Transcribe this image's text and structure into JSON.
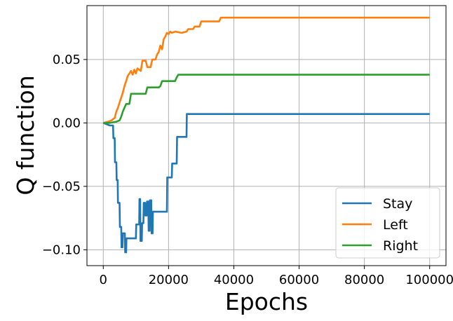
{
  "chart_data": {
    "type": "line",
    "title": "",
    "xlabel": "Epochs",
    "ylabel": "Q function",
    "xlim": [
      -5000,
      105000
    ],
    "ylim": [
      -0.1125,
      0.0925
    ],
    "xticks": [
      0,
      20000,
      40000,
      60000,
      80000,
      100000
    ],
    "xtick_labels": [
      "0",
      "20000",
      "40000",
      "60000",
      "80000",
      "100000"
    ],
    "yticks": [
      -0.1,
      -0.05,
      0.0,
      0.05
    ],
    "ytick_labels": [
      "−0.10",
      "−0.05",
      "0.00",
      "0.05"
    ],
    "grid": true,
    "legend_position": "lower-right",
    "series": [
      {
        "name": "Stay",
        "color": "#1f77b4",
        "points": [
          [
            0,
            0
          ],
          [
            1000,
            -0.001
          ],
          [
            2000,
            -0.002
          ],
          [
            3000,
            -0.002
          ],
          [
            3100,
            -0.012
          ],
          [
            3500,
            -0.012
          ],
          [
            3600,
            -0.031
          ],
          [
            4000,
            -0.031
          ],
          [
            4100,
            -0.045
          ],
          [
            4400,
            -0.045
          ],
          [
            4500,
            -0.063
          ],
          [
            5000,
            -0.063
          ],
          [
            5100,
            -0.082
          ],
          [
            5500,
            -0.082
          ],
          [
            5600,
            -0.098
          ],
          [
            5900,
            -0.098
          ],
          [
            6000,
            -0.087
          ],
          [
            6600,
            -0.087
          ],
          [
            6700,
            -0.102
          ],
          [
            7000,
            -0.102
          ],
          [
            7100,
            -0.091
          ],
          [
            10000,
            -0.091
          ],
          [
            10100,
            -0.08
          ],
          [
            11000,
            -0.08
          ],
          [
            11100,
            -0.06
          ],
          [
            11300,
            -0.06
          ],
          [
            11400,
            -0.093
          ],
          [
            11800,
            -0.093
          ],
          [
            11900,
            -0.079
          ],
          [
            12300,
            -0.079
          ],
          [
            12400,
            -0.063
          ],
          [
            12800,
            -0.063
          ],
          [
            12900,
            -0.073
          ],
          [
            13300,
            -0.073
          ],
          [
            13400,
            -0.062
          ],
          [
            13800,
            -0.062
          ],
          [
            13900,
            -0.085
          ],
          [
            14200,
            -0.085
          ],
          [
            14300,
            -0.061
          ],
          [
            14700,
            -0.061
          ],
          [
            14800,
            -0.087
          ],
          [
            15100,
            -0.087
          ],
          [
            15200,
            -0.07
          ],
          [
            19500,
            -0.07
          ],
          [
            19600,
            -0.043
          ],
          [
            21000,
            -0.043
          ],
          [
            21100,
            -0.032
          ],
          [
            22500,
            -0.032
          ],
          [
            22600,
            -0.011
          ],
          [
            25500,
            -0.011
          ],
          [
            25600,
            0.007
          ],
          [
            100000,
            0.007
          ]
        ]
      },
      {
        "name": "Left",
        "color": "#ff7f0e",
        "points": [
          [
            0,
            0
          ],
          [
            1500,
            0.001
          ],
          [
            2500,
            0.002
          ],
          [
            3500,
            0.004
          ],
          [
            4000,
            0.009
          ],
          [
            4500,
            0.012
          ],
          [
            5000,
            0.016
          ],
          [
            5500,
            0.02
          ],
          [
            6000,
            0.024
          ],
          [
            6500,
            0.029
          ],
          [
            7000,
            0.033
          ],
          [
            7500,
            0.037
          ],
          [
            8000,
            0.039
          ],
          [
            8500,
            0.041
          ],
          [
            9000,
            0.038
          ],
          [
            9500,
            0.042
          ],
          [
            10000,
            0.039
          ],
          [
            10500,
            0.043
          ],
          [
            11500,
            0.041
          ],
          [
            12000,
            0.049
          ],
          [
            13000,
            0.049
          ],
          [
            13500,
            0.044
          ],
          [
            14500,
            0.044
          ],
          [
            15000,
            0.05
          ],
          [
            16000,
            0.05
          ],
          [
            16500,
            0.054
          ],
          [
            17000,
            0.056
          ],
          [
            17500,
            0.061
          ],
          [
            18000,
            0.058
          ],
          [
            18500,
            0.066
          ],
          [
            19000,
            0.068
          ],
          [
            19500,
            0.071
          ],
          [
            20000,
            0.07
          ],
          [
            20500,
            0.072
          ],
          [
            21000,
            0.071
          ],
          [
            22000,
            0.072
          ],
          [
            24000,
            0.071
          ],
          [
            25500,
            0.072
          ],
          [
            26000,
            0.074
          ],
          [
            27500,
            0.074
          ],
          [
            28000,
            0.076
          ],
          [
            29500,
            0.076
          ],
          [
            30000,
            0.08
          ],
          [
            35500,
            0.08
          ],
          [
            36000,
            0.083
          ],
          [
            100000,
            0.083
          ]
        ]
      },
      {
        "name": "Right",
        "color": "#2ca02c",
        "points": [
          [
            0,
            0
          ],
          [
            2000,
            0.0
          ],
          [
            4000,
            0.001
          ],
          [
            5000,
            0.002
          ],
          [
            5500,
            0.005
          ],
          [
            6000,
            0.009
          ],
          [
            6500,
            0.012
          ],
          [
            7000,
            0.015
          ],
          [
            8000,
            0.015
          ],
          [
            8500,
            0.023
          ],
          [
            13000,
            0.023
          ],
          [
            13500,
            0.028
          ],
          [
            17000,
            0.028
          ],
          [
            17500,
            0.029
          ],
          [
            18000,
            0.033
          ],
          [
            22000,
            0.033
          ],
          [
            22500,
            0.036
          ],
          [
            23000,
            0.038
          ],
          [
            100000,
            0.038
          ]
        ]
      }
    ]
  }
}
